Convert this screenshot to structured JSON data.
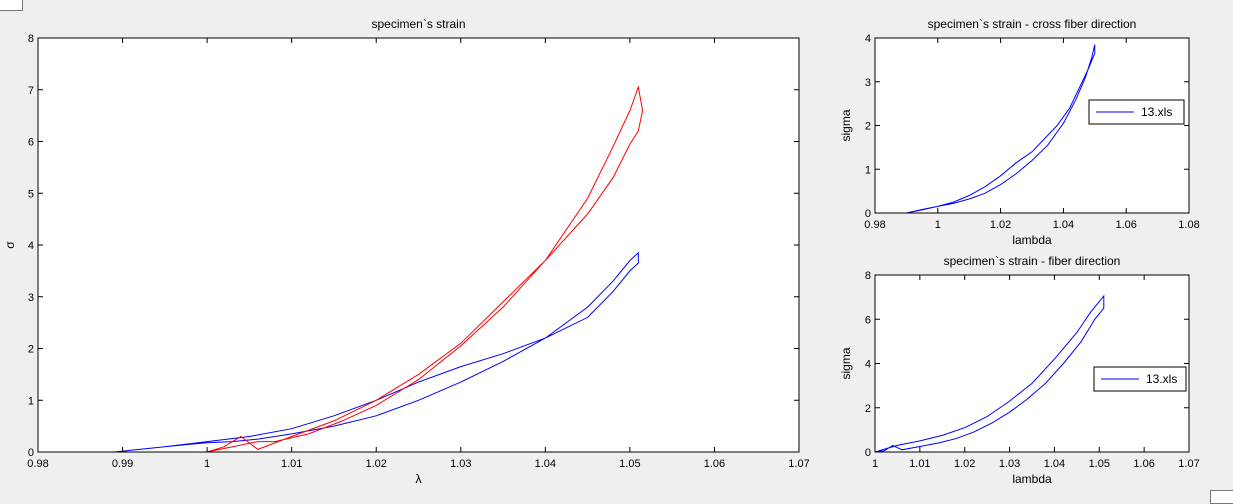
{
  "chart_data": [
    {
      "type": "line",
      "title": "specimen`s strain",
      "xlabel": "λ",
      "ylabel": "σ",
      "xlim": [
        0.98,
        1.07
      ],
      "ylim": [
        0,
        8
      ],
      "xticks": [
        "0.98",
        "0.99",
        "1",
        "1.01",
        "1.02",
        "1.03",
        "1.04",
        "1.05",
        "1.06",
        "1.07"
      ],
      "yticks": [
        "0",
        "1",
        "2",
        "3",
        "4",
        "5",
        "6",
        "7",
        "8"
      ],
      "grid": false,
      "series": [
        {
          "color": "#0000ff",
          "x": [
            0.989,
            0.992,
            0.995,
            0.998,
            1.0,
            1.003,
            1.006,
            1.01,
            1.015,
            1.02,
            1.025,
            1.03,
            1.035,
            1.04,
            1.045,
            1.048,
            1.05,
            1.051,
            1.051,
            1.05,
            1.048,
            1.045,
            1.04,
            1.035,
            1.03,
            1.025,
            1.02,
            1.015,
            1.01,
            1.005,
            1.0,
            0.995,
            0.989
          ],
          "y": [
            0.0,
            0.05,
            0.1,
            0.15,
            0.18,
            0.2,
            0.25,
            0.35,
            0.5,
            0.7,
            1.0,
            1.35,
            1.75,
            2.2,
            2.8,
            3.3,
            3.7,
            3.85,
            3.65,
            3.5,
            3.1,
            2.6,
            2.2,
            1.9,
            1.65,
            1.35,
            1.0,
            0.7,
            0.45,
            0.3,
            0.2,
            0.1,
            0.0
          ]
        },
        {
          "color": "#ff0000",
          "x": [
            1.0,
            1.003,
            1.006,
            1.008,
            1.012,
            1.016,
            1.02,
            1.025,
            1.03,
            1.035,
            1.04,
            1.045,
            1.048,
            1.05,
            1.051,
            1.0515,
            1.051,
            1.05,
            1.048,
            1.045,
            1.04,
            1.035,
            1.03,
            1.025,
            1.02,
            1.015,
            1.01,
            1.006,
            1.004,
            1.002,
            1.0
          ],
          "y": [
            0.0,
            0.1,
            0.2,
            0.2,
            0.35,
            0.6,
            0.9,
            1.4,
            2.05,
            2.8,
            3.7,
            4.9,
            5.9,
            6.6,
            7.05,
            6.6,
            6.2,
            5.95,
            5.3,
            4.6,
            3.7,
            2.9,
            2.1,
            1.5,
            1.0,
            0.6,
            0.3,
            0.05,
            0.3,
            0.1,
            0.0
          ]
        }
      ]
    },
    {
      "type": "line",
      "title": "specimen`s strain - cross fiber direction",
      "xlabel": "lambda",
      "ylabel": "sigma",
      "xlim": [
        0.98,
        1.08
      ],
      "ylim": [
        0,
        4
      ],
      "xticks": [
        "0.98",
        "1",
        "1.02",
        "1.04",
        "1.06",
        "1.08"
      ],
      "yticks": [
        "0",
        "1",
        "2",
        "3",
        "4"
      ],
      "legend": {
        "position": "right",
        "entries": [
          "13.xls"
        ]
      },
      "series": [
        {
          "color": "#0000ff",
          "x": [
            0.99,
            0.995,
            1.0,
            1.005,
            1.01,
            1.015,
            1.02,
            1.025,
            1.03,
            1.035,
            1.04,
            1.044,
            1.047,
            1.049,
            1.05,
            1.05,
            1.048,
            1.045,
            1.042,
            1.038,
            1.034,
            1.03,
            1.025,
            1.02,
            1.015,
            1.01,
            1.005,
            1.0,
            0.995,
            0.99
          ],
          "y": [
            0.0,
            0.08,
            0.15,
            0.22,
            0.32,
            0.45,
            0.65,
            0.9,
            1.2,
            1.55,
            2.05,
            2.6,
            3.1,
            3.55,
            3.85,
            3.65,
            3.3,
            2.85,
            2.4,
            2.0,
            1.7,
            1.4,
            1.15,
            0.85,
            0.6,
            0.4,
            0.25,
            0.15,
            0.07,
            0.0
          ]
        }
      ]
    },
    {
      "type": "line",
      "title": "specimen`s strain - fiber direction",
      "xlabel": "lambda",
      "ylabel": "sigma",
      "xlim": [
        1.0,
        1.07
      ],
      "ylim": [
        0,
        8
      ],
      "xticks": [
        "1",
        "1.01",
        "1.02",
        "1.03",
        "1.04",
        "1.05",
        "1.06",
        "1.07"
      ],
      "yticks": [
        "0",
        "2",
        "4",
        "6",
        "8"
      ],
      "legend": {
        "position": "right",
        "entries": [
          "13.xls"
        ]
      },
      "series": [
        {
          "color": "#0000ff",
          "x": [
            1.0,
            1.005,
            1.01,
            1.015,
            1.02,
            1.025,
            1.03,
            1.035,
            1.04,
            1.045,
            1.048,
            1.05,
            1.051,
            1.051,
            1.049,
            1.046,
            1.042,
            1.038,
            1.034,
            1.03,
            1.026,
            1.022,
            1.018,
            1.014,
            1.01,
            1.006,
            1.004,
            1.002,
            1.0
          ],
          "y": [
            0.0,
            0.3,
            0.5,
            0.75,
            1.1,
            1.6,
            2.3,
            3.1,
            4.2,
            5.4,
            6.3,
            6.8,
            7.05,
            6.5,
            6.0,
            5.0,
            4.0,
            3.1,
            2.4,
            1.8,
            1.3,
            0.9,
            0.6,
            0.4,
            0.25,
            0.1,
            0.3,
            0.05,
            0.0
          ]
        }
      ]
    }
  ]
}
